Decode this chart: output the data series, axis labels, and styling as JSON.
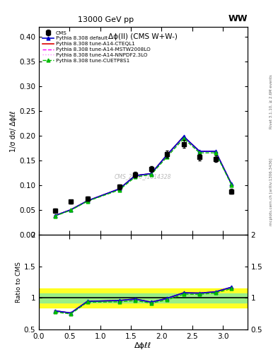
{
  "title_top": "13000 GeV pp",
  "title_right": "WW",
  "plot_title": "Δϕ(ll) (CMS W+W-)",
  "xlabel": "Δϕℓℓ",
  "ylabel_main": "1/σ dσ/ Δϕℓℓ",
  "ylabel_ratio": "Ratio to CMS",
  "watermark": "CMS_2020_I1814328",
  "right_label": "mcplots.cern.ch [arXiv:1306.3436]",
  "right_label2": "Rivet 3.1.10, ≥ 2.6M events",
  "cms_x": [
    0.26,
    0.52,
    0.79,
    1.31,
    1.57,
    1.83,
    2.09,
    2.36,
    2.62,
    2.88,
    3.14
  ],
  "cms_y": [
    0.049,
    0.067,
    0.073,
    0.097,
    0.122,
    0.133,
    0.163,
    0.184,
    0.157,
    0.154,
    0.088
  ],
  "cms_yerr": [
    0.004,
    0.004,
    0.004,
    0.005,
    0.006,
    0.006,
    0.007,
    0.008,
    0.007,
    0.007,
    0.005
  ],
  "pythia_default_x": [
    0.26,
    0.52,
    0.79,
    1.31,
    1.57,
    1.83,
    2.09,
    2.36,
    2.62,
    2.88,
    3.14
  ],
  "pythia_default_y": [
    0.039,
    0.051,
    0.069,
    0.093,
    0.12,
    0.124,
    0.162,
    0.199,
    0.169,
    0.169,
    0.103
  ],
  "cteql1_x": [
    0.26,
    0.52,
    0.79,
    1.31,
    1.57,
    1.83,
    2.09,
    2.36,
    2.62,
    2.88,
    3.14
  ],
  "cteql1_y": [
    0.039,
    0.051,
    0.069,
    0.093,
    0.12,
    0.124,
    0.162,
    0.199,
    0.169,
    0.169,
    0.103
  ],
  "mstw_x": [
    0.26,
    0.52,
    0.79,
    1.31,
    1.57,
    1.83,
    2.09,
    2.36,
    2.62,
    2.88,
    3.14
  ],
  "mstw_y": [
    0.039,
    0.051,
    0.069,
    0.093,
    0.119,
    0.124,
    0.161,
    0.198,
    0.169,
    0.169,
    0.103
  ],
  "nnpdf_x": [
    0.26,
    0.52,
    0.79,
    1.31,
    1.57,
    1.83,
    2.09,
    2.36,
    2.62,
    2.88,
    3.14
  ],
  "nnpdf_y": [
    0.039,
    0.051,
    0.069,
    0.093,
    0.119,
    0.124,
    0.161,
    0.198,
    0.169,
    0.169,
    0.103
  ],
  "cuetp_x": [
    0.26,
    0.52,
    0.79,
    1.31,
    1.57,
    1.83,
    2.09,
    2.36,
    2.62,
    2.88,
    3.14
  ],
  "cuetp_y": [
    0.038,
    0.05,
    0.068,
    0.091,
    0.117,
    0.122,
    0.158,
    0.195,
    0.166,
    0.166,
    0.101
  ],
  "ylim_main": [
    0.0,
    0.42
  ],
  "ylim_ratio": [
    0.5,
    2.0
  ],
  "xlim": [
    0.0,
    3.4
  ],
  "yticks_main": [
    0.0,
    0.05,
    0.1,
    0.15,
    0.2,
    0.25,
    0.3,
    0.35,
    0.4
  ],
  "yticks_ratio": [
    0.5,
    1.0,
    1.5,
    2.0
  ],
  "color_default": "#0000cc",
  "color_cteql1": "#dd0000",
  "color_mstw": "#ff00ff",
  "color_nnpdf": "#ff88ff",
  "color_cuetp": "#00bb00",
  "band_yellow": [
    0.85,
    1.15
  ],
  "band_green": [
    0.93,
    1.07
  ]
}
